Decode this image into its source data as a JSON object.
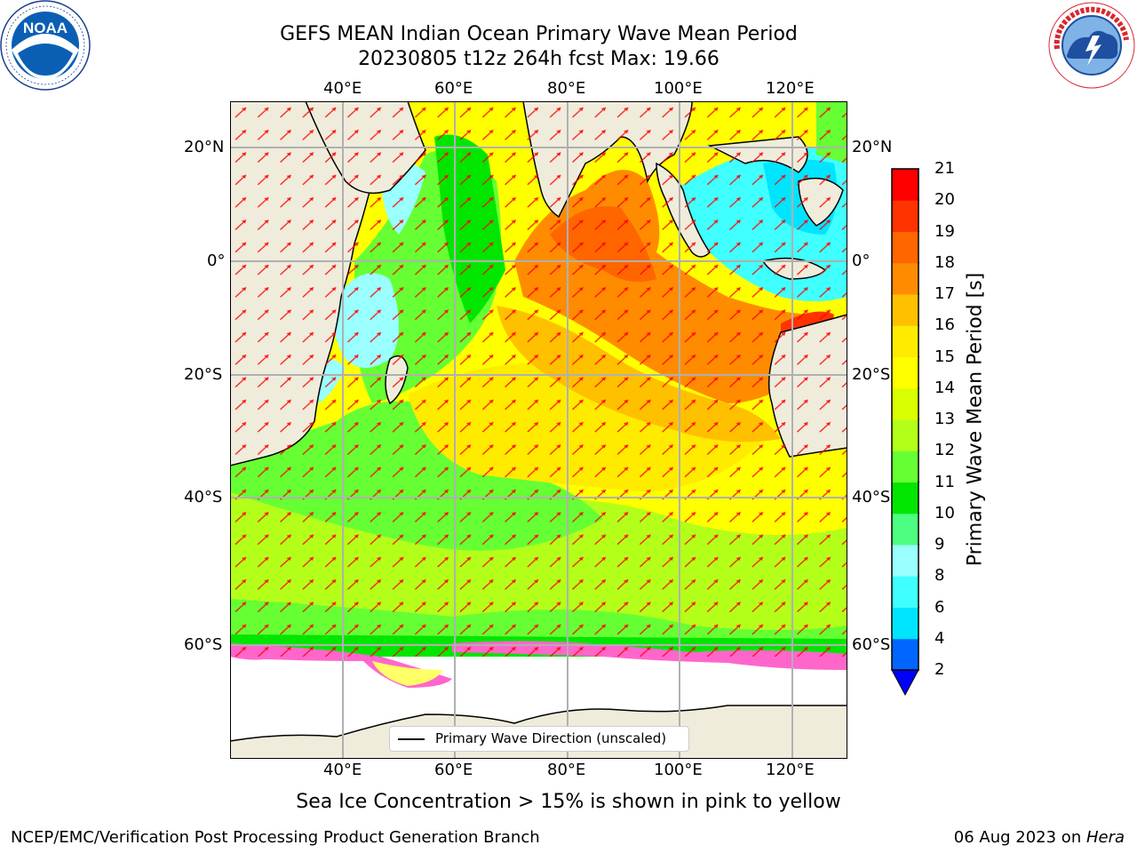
{
  "header": {
    "title_line1": "GEFS MEAN Indian Ocean Primary Wave Mean Period",
    "title_line2": "20230805 t12z 264h fcst   Max: 19.66"
  },
  "logos": {
    "left": {
      "name": "noaa-logo",
      "text": "NOAA",
      "ring_text": "NATIONAL OCEANIC AND ATMOSPHERIC ADMINISTRATION · U.S. DEPARTMENT OF COMMERCE"
    },
    "right": {
      "name": "nws-logo",
      "ring_text": "NATIONAL WEATHER SERVICE"
    }
  },
  "map": {
    "lon_ticks_top": [
      "40°E",
      "60°E",
      "80°E",
      "100°E",
      "120°E"
    ],
    "lon_ticks_bottom": [
      "40°E",
      "60°E",
      "80°E",
      "100°E",
      "120°E"
    ],
    "lat_ticks_left": [
      "20°N",
      "0°",
      "20°S",
      "40°S",
      "60°S"
    ],
    "lat_ticks_right": [
      "20°N",
      "0°",
      "20°S",
      "40°S",
      "60°S"
    ],
    "lon_range": [
      20,
      130
    ],
    "lat_range": [
      -80,
      28
    ],
    "gridlines": true,
    "legend": {
      "label": "Primary Wave Direction (unscaled)",
      "placement": "bottom-center"
    }
  },
  "colorbar": {
    "title": "Primary Wave Mean Period [s]",
    "ticks": [
      "21",
      "20",
      "19",
      "18",
      "17",
      "16",
      "15",
      "14",
      "13",
      "12",
      "11",
      "10",
      "9",
      "8",
      "6",
      "4",
      "2"
    ],
    "levels": [
      2,
      4,
      6,
      8,
      9,
      10,
      11,
      12,
      13,
      14,
      15,
      16,
      17,
      18,
      19,
      20,
      21
    ],
    "colors_low_to_high": [
      "#0066ff",
      "#00e5ff",
      "#40ffff",
      "#99ffff",
      "#4dff80",
      "#00e600",
      "#66ff33",
      "#b3ff1a",
      "#d9ff00",
      "#ffff00",
      "#ffeb00",
      "#ffc000",
      "#ff8c00",
      "#ff6600",
      "#ff3300",
      "#ff0000"
    ],
    "extend_min_color": "#0000ff"
  },
  "chart_data": {
    "type": "heatmap",
    "variable": "Primary Wave Mean Period",
    "unit": "s",
    "max_value": 19.66,
    "regions_approx": [
      {
        "region": "Bay of Bengal",
        "value": 17.5
      },
      {
        "region": "Arabian Sea",
        "value": 11
      },
      {
        "region": "Northern Arabian Sea",
        "value": 10
      },
      {
        "region": "Off western Australia",
        "value": 18
      },
      {
        "region": "Central southern Indian Ocean",
        "value": 14
      },
      {
        "region": "Southern Ocean near 55°S",
        "value": 12
      },
      {
        "region": "Mozambique Channel",
        "value": 8.5
      },
      {
        "region": "Indonesian seas",
        "value": 7
      }
    ]
  },
  "captions": {
    "sea_ice": "Sea Ice Concentration > 15% is shown in pink to yellow",
    "footer_left": "NCEP/EMC/Verification Post Processing Product Generation Branch",
    "footer_right_prefix": "06 Aug 2023 on ",
    "footer_right_machine": "Hera"
  }
}
